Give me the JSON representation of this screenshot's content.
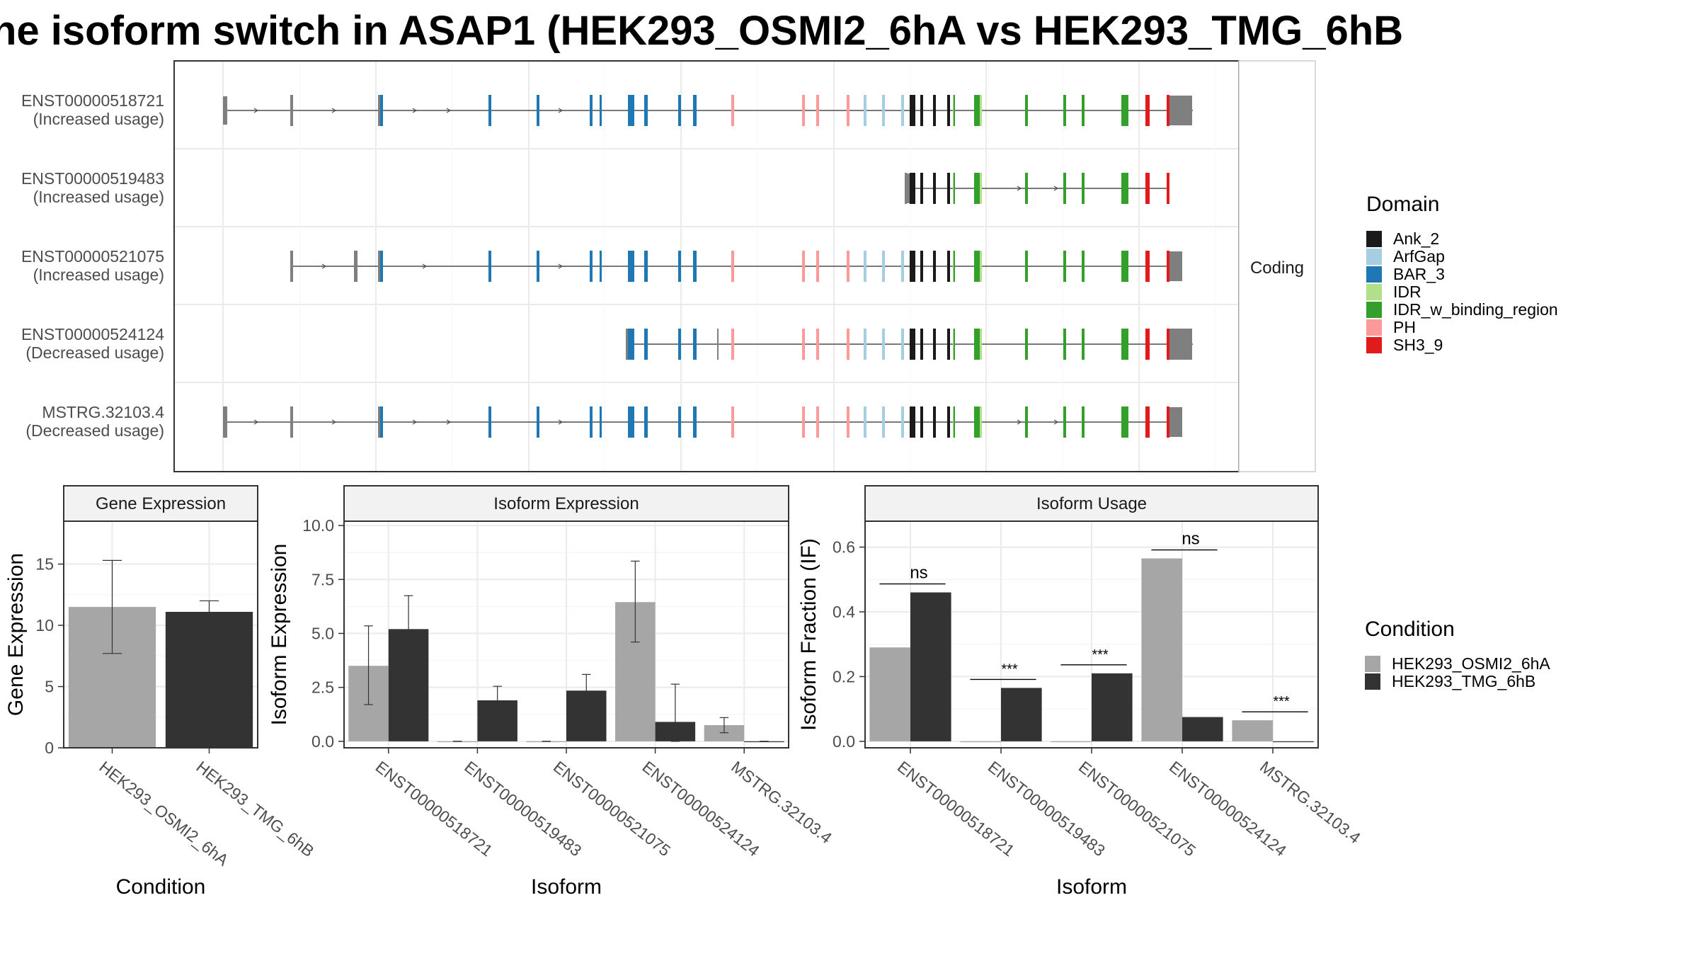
{
  "title": "he isoform switch in ASAP1 (HEK293_OSMI2_6hA vs HEK293_TMG_6hB",
  "structure": {
    "facet_label": "Coding",
    "isoforms": [
      {
        "id": "ENST00000518721",
        "usage": "(Increased usage)"
      },
      {
        "id": "ENST00000519483",
        "usage": "(Increased usage)"
      },
      {
        "id": "ENST00000521075",
        "usage": "(Increased usage)"
      },
      {
        "id": "ENST00000524124",
        "usage": "(Decreased usage)"
      },
      {
        "id": "MSTRG.32103.4",
        "usage": "(Decreased usage)"
      }
    ]
  },
  "domain_legend": {
    "title": "Domain",
    "items": [
      {
        "label": "Ank_2",
        "color": "#1a1a1a"
      },
      {
        "label": "ArfGap",
        "color": "#a6cee3"
      },
      {
        "label": "BAR_3",
        "color": "#1f78b4"
      },
      {
        "label": "IDR",
        "color": "#b2df8a"
      },
      {
        "label": "IDR_w_binding_region",
        "color": "#33a02c"
      },
      {
        "label": "PH",
        "color": "#fb9a99"
      },
      {
        "label": "SH3_9",
        "color": "#e31a1c"
      }
    ]
  },
  "condition_legend": {
    "title": "Condition",
    "items": [
      {
        "label": "HEK293_OSMI2_6hA",
        "color": "#a6a6a6"
      },
      {
        "label": "HEK293_TMG_6hB",
        "color": "#333333"
      }
    ]
  },
  "chart_data": [
    {
      "type": "bar",
      "title": "Gene Expression",
      "xlabel": "Condition",
      "ylabel": "Gene Expression",
      "ylim": [
        0,
        18.5
      ],
      "yticks": [
        0,
        5,
        10,
        15
      ],
      "categories": [
        "HEK293_OSMI2_6hA",
        "HEK293_TMG_6hB"
      ],
      "values": [
        11.5,
        11.1
      ],
      "err_low": [
        7.7,
        10.3
      ],
      "err_high": [
        15.3,
        12.0
      ]
    },
    {
      "type": "bar",
      "title": "Isoform Expression",
      "xlabel": "Isoform",
      "ylabel": "Isoform Expression",
      "ylim": [
        -0.3,
        10.2
      ],
      "yticks": [
        0.0,
        2.5,
        5.0,
        7.5,
        10.0
      ],
      "categories": [
        "ENST00000518721",
        "ENST00000519483",
        "ENST00000521075",
        "ENST00000524124",
        "MSTRG.32103.4"
      ],
      "series": [
        {
          "name": "HEK293_OSMI2_6hA",
          "values": [
            3.5,
            0.0,
            0.0,
            6.45,
            0.75
          ],
          "err_low": [
            1.7,
            0.0,
            0.0,
            4.6,
            0.4
          ],
          "err_high": [
            5.35,
            0.0,
            0.0,
            8.35,
            1.1
          ]
        },
        {
          "name": "HEK293_TMG_6hB",
          "values": [
            5.2,
            1.9,
            2.35,
            0.9,
            0.0
          ],
          "err_low": [
            3.7,
            1.25,
            1.6,
            0.0,
            0.0
          ],
          "err_high": [
            6.75,
            2.55,
            3.1,
            2.65,
            0.0
          ]
        }
      ]
    },
    {
      "type": "bar",
      "title": "Isoform Usage",
      "xlabel": "Isoform",
      "ylabel": "Isoform Fraction (IF)",
      "ylim": [
        -0.02,
        0.68
      ],
      "yticks": [
        0.0,
        0.2,
        0.4,
        0.6
      ],
      "categories": [
        "ENST00000518721",
        "ENST00000519483",
        "ENST00000521075",
        "ENST00000524124",
        "MSTRG.32103.4"
      ],
      "series": [
        {
          "name": "HEK293_OSMI2_6hA",
          "values": [
            0.29,
            0.0,
            0.0,
            0.565,
            0.065
          ]
        },
        {
          "name": "HEK293_TMG_6hB",
          "values": [
            0.46,
            0.165,
            0.21,
            0.075,
            0.0
          ]
        }
      ],
      "significance": [
        "ns",
        "***",
        "***",
        "ns",
        "***"
      ]
    }
  ]
}
